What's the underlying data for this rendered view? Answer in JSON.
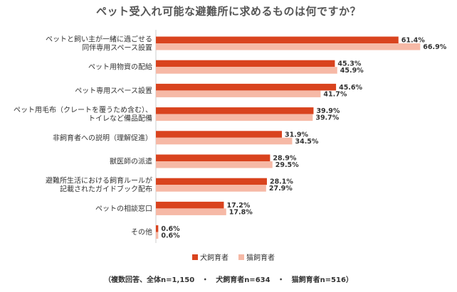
{
  "chart_data": {
    "type": "bar",
    "orientation": "horizontal",
    "title": "ペット受入れ可能な避難所に求めるものは何ですか？",
    "categories": [
      [
        "ペットと飼い主が一緒に過ごせる",
        "同伴専用スペース設置"
      ],
      [
        "ペット用物資の配給"
      ],
      [
        "ペット専用スペース設置"
      ],
      [
        "ペット用毛布（クレートを覆うため含む）、",
        "トイレなど備品配備"
      ],
      [
        "非飼育者への説明（理解促進）"
      ],
      [
        "獣医師の派遣"
      ],
      [
        "避難所生活における飼育ルールが",
        "記載されたガイドブック配布"
      ],
      [
        "ペットの相談窓口"
      ],
      [
        "その他"
      ]
    ],
    "series": [
      {
        "name": "犬飼育者",
        "color": "#d9431e",
        "values": [
          61.4,
          45.3,
          45.6,
          39.9,
          31.9,
          28.9,
          28.1,
          17.2,
          0.6
        ],
        "labels": [
          "61.4%",
          "45.3%",
          "45.6%",
          "39.9%",
          "31.9%",
          "28.9%",
          "28.1%",
          "17.2%",
          "0.6%"
        ]
      },
      {
        "name": "猫飼育者",
        "color": "#f6b9a6",
        "values": [
          66.9,
          45.9,
          41.7,
          39.7,
          34.5,
          29.5,
          27.9,
          17.8,
          0.6
        ],
        "labels": [
          "66.9%",
          "45.9%",
          "41.7%",
          "39.7%",
          "34.5%",
          "29.5%",
          "27.9%",
          "17.8%",
          "0.6%"
        ]
      }
    ],
    "xlim": [
      0,
      70
    ],
    "legend_position": "bottom",
    "footnote": "（複数回答、全体n=1,150　・　犬飼育者n=634　・　猫飼育者n=516）"
  }
}
